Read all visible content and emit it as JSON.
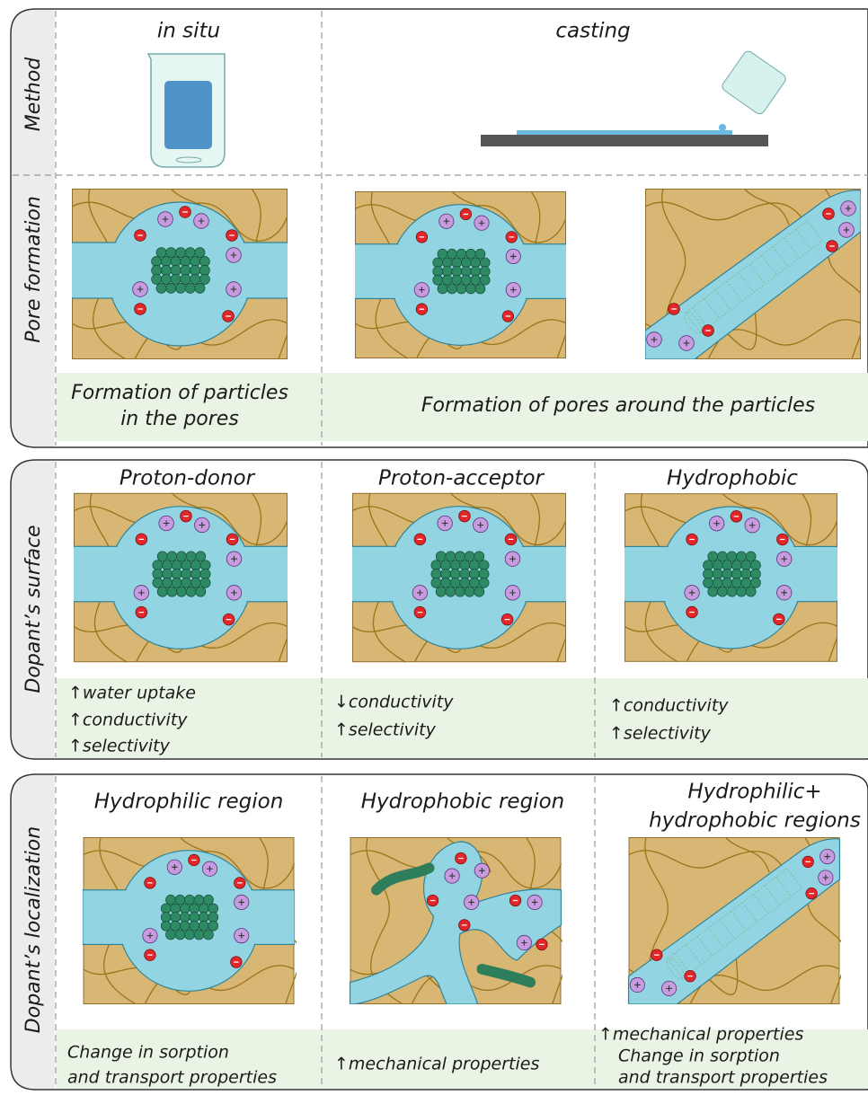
{
  "panels": [
    {
      "side_labels": [
        "Method",
        "Pore formation"
      ],
      "columns": [
        "in situ",
        "casting"
      ],
      "captions": [
        [
          "Formation of particles",
          "in the pores"
        ],
        [
          "Formation of pores around the particles"
        ]
      ]
    },
    {
      "side_label": "Dopant’s surface",
      "columns": [
        "Proton-donor",
        "Proton-acceptor",
        "Hydrophobic"
      ],
      "effects": [
        [
          "↑water uptake",
          "↑conductivity",
          "↑selectivity"
        ],
        [
          "↓conductivity",
          "↑selectivity"
        ],
        [
          "↑conductivity",
          "↑selectivity"
        ]
      ]
    },
    {
      "side_label": "Dopant’s localization",
      "columns": [
        [
          "Hydrophilic region"
        ],
        [
          "Hydrophobic region"
        ],
        [
          "Hydrophilic+",
          "hydrophobic regions"
        ]
      ],
      "effects": [
        [
          "Change in sorption",
          "and transport properties"
        ],
        [
          "↑mechanical properties"
        ],
        [
          "↑mechanical properties",
          "Change in sorption",
          "and transport properties"
        ]
      ]
    }
  ]
}
